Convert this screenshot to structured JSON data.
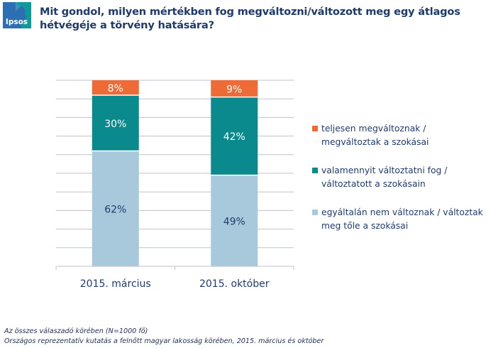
{
  "brand": {
    "logo_text": "Ipsos",
    "logo_color": "#2d6fb3",
    "logo_accent": "#0f9a9a"
  },
  "title_lines": [
    "Mit gondol, milyen mértékben fog megváltozni/változott meg egy átlagos",
    "hétvégéje a törvény hatására?"
  ],
  "legend": [
    {
      "lines": [
        "teljesen megváltoznak /",
        "megváltoztak a szokásai"
      ],
      "color": "#ee6a36"
    },
    {
      "lines": [
        "valamennyit változtatni fog /",
        "változtatott a szokásain"
      ],
      "color": "#0b8a8e"
    },
    {
      "lines": [
        "egyáltalán nem változnak / változtak",
        "meg tőle a szokásai"
      ],
      "color": "#a8c9dc"
    }
  ],
  "footnotes": [
    "Az összes válaszadó körében (N=1000 fő)",
    "Országos reprezentatív kutatás a felnőtt magyar lakosság körében, 2015. március és október"
  ],
  "chart_data": {
    "type": "bar",
    "stacked": true,
    "percent_stacked": true,
    "title": "Mit gondol, milyen mértékben fog megváltozni/változott meg egy átlagos hétvégéje a törvény hatására?",
    "xlabel": "",
    "ylabel": "",
    "ylim": [
      0,
      100
    ],
    "grid": true,
    "legend_position": "right",
    "categories": [
      "2015. március",
      "2015. október"
    ],
    "series": [
      {
        "name": "egyáltalán nem változnak / változtak meg tőle a szokásai",
        "values": [
          62,
          49
        ],
        "labels": [
          "62%",
          "49%"
        ],
        "color": "#a8c9dc",
        "label_color": "#1f3b6e"
      },
      {
        "name": "valamennyit változtatni fog / változtatott a szokásain",
        "values": [
          30,
          42
        ],
        "labels": [
          "30%",
          "42%"
        ],
        "color": "#0b8a8e",
        "label_color": "#ffffff"
      },
      {
        "name": "teljesen megváltoznak / megváltoztak a szokásai",
        "values": [
          8,
          9
        ],
        "labels": [
          "8%",
          "9%"
        ],
        "color": "#ee6a36",
        "label_color": "#ffffff"
      }
    ]
  }
}
